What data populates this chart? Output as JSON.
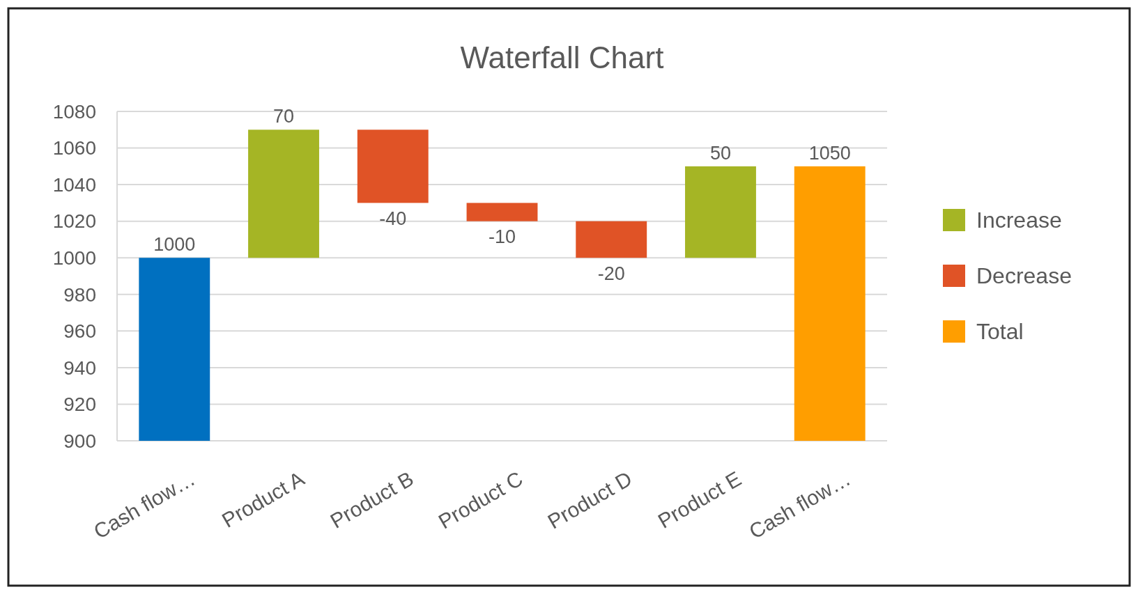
{
  "chart_data": {
    "type": "bar",
    "title": "Waterfall Chart",
    "categories": [
      "Cash flow…",
      "Product A",
      "Product B",
      "Product C",
      "Product D",
      "Product E",
      "Cash flow…"
    ],
    "series": [
      {
        "color": "#0070c0",
        "values": [
          100,
          null,
          null,
          null,
          null,
          null,
          null
        ],
        "base": [
          900,
          null,
          null,
          null,
          null,
          null,
          null
        ]
      },
      {
        "name": "Increase",
        "color": "#a5b525",
        "values": [
          null,
          70,
          null,
          null,
          null,
          50,
          null
        ],
        "base": [
          null,
          1000,
          null,
          null,
          null,
          1000,
          null
        ]
      },
      {
        "name": "Decrease",
        "color": "#e05326",
        "values": [
          null,
          null,
          -40,
          -10,
          -20,
          null,
          null
        ],
        "base": [
          null,
          null,
          1070,
          1030,
          1020,
          null,
          null
        ]
      },
      {
        "name": "Total",
        "color": "#ff9e00",
        "values": [
          null,
          null,
          null,
          null,
          null,
          null,
          150
        ],
        "base": [
          null,
          null,
          null,
          null,
          null,
          null,
          900
        ]
      }
    ],
    "value_labels": [
      "1000",
      "70",
      "-40",
      "-10",
      "-20",
      "50",
      "1050"
    ],
    "ylim": [
      900,
      1080
    ],
    "yticks": [
      900,
      920,
      940,
      960,
      980,
      1000,
      1020,
      1040,
      1060,
      1080
    ],
    "grid": "y",
    "legend": "right"
  }
}
